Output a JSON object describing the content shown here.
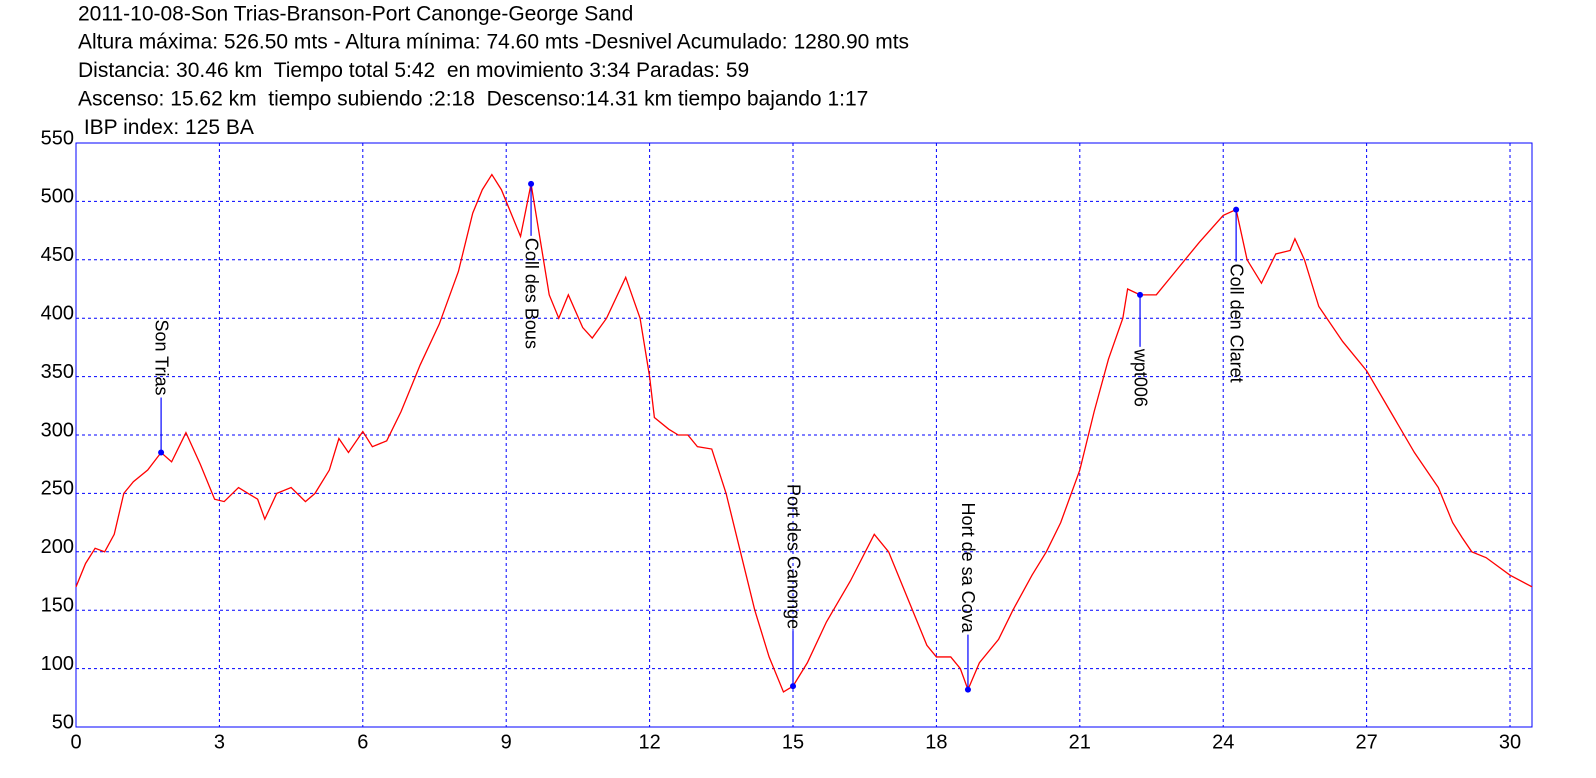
{
  "chart_data": {
    "type": "line",
    "title": "2011-10-08-Son Trias-Branson-Port Canonge-George Sand",
    "subtitle_lines": [
      "Altura máxima: 526.50 mts - Altura mínima: 74.60 mts -Desnivel Acumulado: 1280.90 mts",
      "Distancia: 30.46 km  Tiempo total 5:42  en movimiento 3:34 Paradas: 59",
      "Ascenso: 15.62 km  tiempo subiendo :2:18  Descenso:14.31 km tiempo bajando 1:17",
      " IBP index: 125 BA"
    ],
    "x": [
      0,
      0.2,
      0.4,
      0.6,
      0.8,
      1.0,
      1.2,
      1.5,
      1.78,
      2.0,
      2.3,
      2.6,
      2.9,
      3.1,
      3.4,
      3.6,
      3.8,
      3.95,
      4.2,
      4.5,
      4.8,
      5.0,
      5.3,
      5.5,
      5.7,
      6.0,
      6.2,
      6.5,
      6.8,
      7.2,
      7.6,
      8.0,
      8.3,
      8.5,
      8.7,
      8.9,
      9.1,
      9.3,
      9.52,
      9.7,
      9.9,
      10.1,
      10.3,
      10.6,
      10.8,
      11.1,
      11.5,
      11.8,
      12.0,
      12.1,
      12.4,
      12.6,
      12.8,
      13.0,
      13.3,
      13.6,
      13.9,
      14.2,
      14.5,
      14.8,
      15.0,
      15.3,
      15.7,
      16.2,
      16.7,
      17.0,
      17.4,
      17.8,
      18.0,
      18.3,
      18.5,
      18.66,
      18.9,
      19.3,
      19.6,
      20.0,
      20.3,
      20.6,
      21.0,
      21.3,
      21.6,
      21.9,
      22.0,
      22.26,
      22.6,
      23.0,
      23.5,
      24.0,
      24.27,
      24.5,
      24.8,
      25.1,
      25.4,
      25.5,
      25.7,
      26.0,
      26.5,
      27.0,
      27.5,
      28.0,
      28.5,
      28.8,
      29.0,
      29.2,
      29.5,
      30.0,
      30.46
    ],
    "series": [
      {
        "color": "#ff0000",
        "values": [
          170,
          190,
          203,
          200,
          215,
          250,
          260,
          270,
          285,
          277,
          302,
          275,
          245,
          243,
          255,
          250,
          245,
          228,
          250,
          255,
          243,
          250,
          270,
          297,
          285,
          303,
          290,
          295,
          320,
          360,
          395,
          440,
          490,
          510,
          523,
          510,
          490,
          470,
          515,
          470,
          420,
          400,
          420,
          392,
          383,
          400,
          435,
          400,
          350,
          315,
          305,
          300,
          300,
          290,
          288,
          250,
          200,
          150,
          110,
          80,
          85,
          105,
          140,
          175,
          215,
          200,
          160,
          120,
          110,
          110,
          100,
          82,
          105,
          125,
          150,
          180,
          200,
          225,
          270,
          320,
          365,
          400,
          425,
          420,
          420,
          440,
          465,
          488,
          493,
          450,
          430,
          455,
          458,
          468,
          450,
          410,
          380,
          355,
          320,
          285,
          255,
          225,
          212,
          200,
          195,
          180,
          170
        ]
      }
    ],
    "waypoints": [
      {
        "label": "Son Trias",
        "x": 1.78,
        "y": 285
      },
      {
        "label": "Coll des Bous",
        "x": 9.52,
        "y": 515
      },
      {
        "label": "Port des Canonge",
        "x": 15.0,
        "y": 85
      },
      {
        "label": "Hort de sa Cova",
        "x": 18.66,
        "y": 82
      },
      {
        "label": "wpt006",
        "x": 22.26,
        "y": 420
      },
      {
        "label": "Coll den Claret",
        "x": 24.27,
        "y": 493
      }
    ],
    "waypoint_color": "#0000ff",
    "xlim": [
      0,
      30.46
    ],
    "ylim": [
      50,
      550
    ],
    "xticks": [
      0,
      3,
      6,
      9,
      12,
      15,
      18,
      21,
      24,
      27,
      30
    ],
    "yticks": [
      50,
      100,
      150,
      200,
      250,
      300,
      350,
      400,
      450,
      500,
      550
    ],
    "grid": true,
    "grid_color": "#0000ff"
  }
}
